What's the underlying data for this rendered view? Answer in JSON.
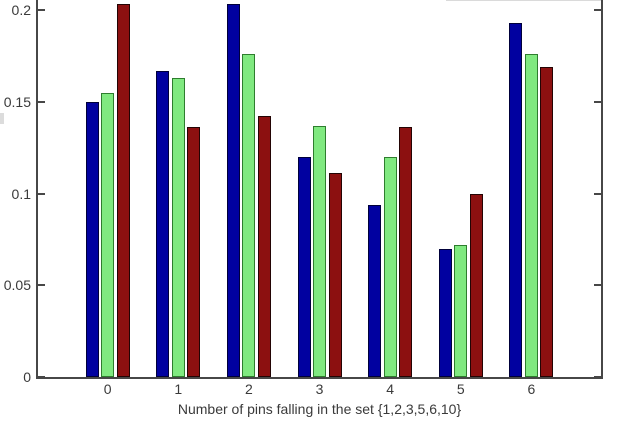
{
  "chart_data": {
    "type": "bar",
    "title": "",
    "xlabel": "Number of pins falling in the set {1,2,3,5,6,10}",
    "ylabel": "",
    "categories": [
      "0",
      "1",
      "2",
      "3",
      "4",
      "5",
      "6"
    ],
    "series": [
      {
        "name": "blue",
        "color": "#0101a0",
        "edge_color": "#00003a",
        "values": [
          0.15,
          0.167,
          0.203,
          0.12,
          0.094,
          0.07,
          0.193
        ]
      },
      {
        "name": "green",
        "color": "#80e980",
        "edge_color": "#2e7d2e",
        "values": [
          0.155,
          0.163,
          0.176,
          0.137,
          0.12,
          0.072,
          0.176
        ]
      },
      {
        "name": "red",
        "color": "#8c1010",
        "edge_color": "#230404",
        "values": [
          0.203,
          0.136,
          0.142,
          0.111,
          0.136,
          0.1,
          0.169
        ]
      }
    ],
    "y_ticks": [
      "0",
      "0.05",
      "0.1",
      "0.15",
      "0.2"
    ],
    "ylim": [
      0,
      0.205
    ],
    "grid": false,
    "legend": "none visible (cropped above top edge)"
  },
  "axis": {
    "line_color": "#474747",
    "label_color": "#3a3a3a"
  }
}
